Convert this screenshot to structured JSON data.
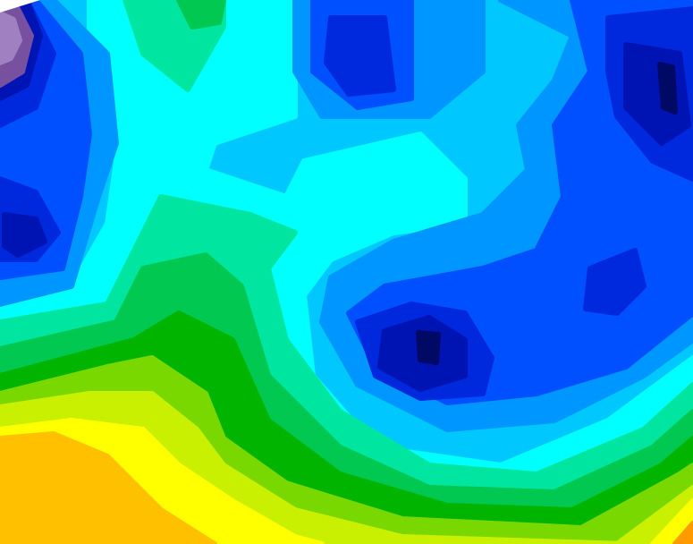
{
  "map": {
    "type": "filled-contour",
    "colors": {
      "background": "#00c8ff",
      "cyan": "#00ffff",
      "aquamarine": "#00e6a0",
      "green_light": "#00c850",
      "green": "#00b400",
      "yellow_green": "#78d800",
      "lime": "#c8f000",
      "yellow": "#ffff00",
      "orange": "#ffc000",
      "dark_orange": "#ff9a00",
      "blue_mid": "#0096ff",
      "blue": "#0050ff",
      "blue_deep": "#0028dc",
      "navy": "#0014b4",
      "navy_dark": "#000a64",
      "purple": "#7850a0",
      "purple_light": "#a080c0"
    }
  }
}
